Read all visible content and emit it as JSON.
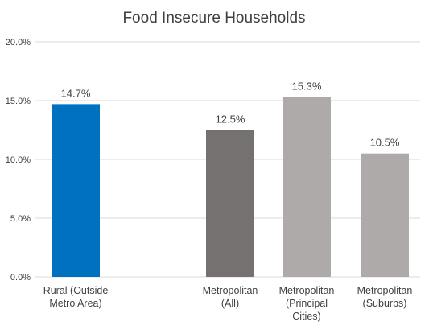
{
  "chart_data": {
    "type": "bar",
    "title": "Food Insecure Households",
    "xlabel": "",
    "ylabel": "",
    "ylim": [
      0,
      20
    ],
    "yticks": [
      0,
      5,
      10,
      15,
      20
    ],
    "ytick_labels": [
      "0.0%",
      "5.0%",
      "10.0%",
      "15.0%",
      "20.0%"
    ],
    "grid": true,
    "legend": "none",
    "categories": [
      [
        "Rural (Outside",
        "Metro Area)"
      ],
      [
        "Metropolitan",
        "(All)"
      ],
      [
        "Metropolitan",
        "(Principal",
        "Cities)"
      ],
      [
        "Metropolitan",
        "(Suburbs)"
      ]
    ],
    "values": [
      14.7,
      12.5,
      15.3,
      10.5
    ],
    "value_labels": [
      "14.7%",
      "12.5%",
      "15.3%",
      "10.5%"
    ],
    "colors": [
      "#0070C0",
      "#767171",
      "#AEAAAA",
      "#AEAAAA"
    ],
    "gridline_color": "#D9D9D9",
    "axis_color": "#D9D9D9"
  }
}
